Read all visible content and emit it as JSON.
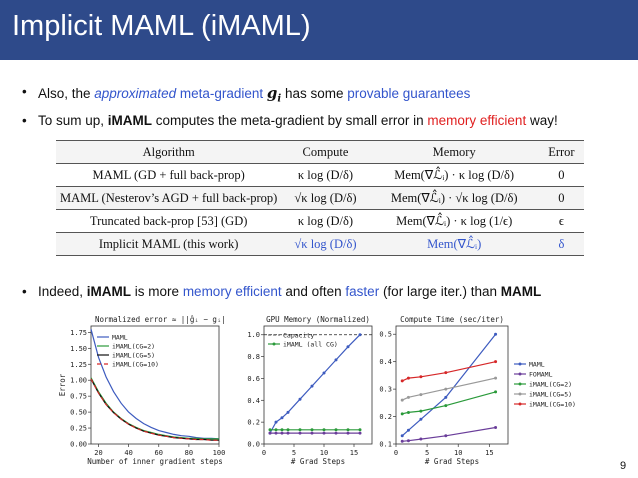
{
  "title": "Implicit MAML (iMAML)",
  "bullets": {
    "b1": {
      "dot": "•",
      "p1": "Also, the ",
      "p2": "approximated",
      "p3": " ",
      "p4": "meta-gradient",
      "p5": " ",
      "g": "g",
      "gsub": "i",
      "p6": " has some ",
      "p7": "provable guarantees"
    },
    "b2": {
      "dot": "•",
      "p1": "To sum up, ",
      "p2": "iMAML",
      "p3": " computes the meta-gradient by small error in ",
      "p4": "memory efficient",
      "p5": " way!"
    },
    "b3": {
      "dot": "•",
      "p1": "Indeed, ",
      "p2": "iMAML",
      "p3": " is more ",
      "p4": "memory efficient",
      "p5": " and often ",
      "p6": "faster",
      "p7": " (for large iter.) than ",
      "p8": "MAML"
    }
  },
  "table": {
    "headers": [
      "Algorithm",
      "Compute",
      "Memory",
      "Error"
    ],
    "rows": [
      {
        "algorithm": "MAML (GD + full back-prop)",
        "compute": "κ log (D/δ)",
        "memory": "Mem(∇ℒ̂ᵢ) · κ log (D/δ)",
        "error": "0"
      },
      {
        "algorithm": "MAML (Nesterov’s AGD + full back-prop)",
        "compute": "√κ log (D/δ)",
        "memory": "Mem(∇ℒ̂ᵢ) · √κ log (D/δ)",
        "error": "0"
      },
      {
        "algorithm": "Truncated back-prop [53] (GD)",
        "compute": "κ log (D/δ)",
        "memory": "Mem(∇ℒ̂ᵢ) · κ log (1/ϵ)",
        "error": "ϵ"
      },
      {
        "algorithm": "Implicit MAML (this work)",
        "compute": "√κ log (D/δ)",
        "memory": "Mem(∇ℒ̂ᵢ)",
        "error": "δ"
      }
    ]
  },
  "chart_data": [
    {
      "type": "line",
      "title": "Normalized error ≈ ||ĝᵢ − gᵢ|| / ||gᵢ||",
      "xlabel": "Number of inner gradient steps",
      "ylabel": "Error",
      "xlim": [
        15,
        100
      ],
      "ylim": [
        0,
        1.85
      ],
      "xticks": [
        20,
        40,
        60,
        80,
        100
      ],
      "yticks": [
        0.0,
        0.25,
        0.5,
        0.75,
        1.0,
        1.25,
        1.5,
        1.75
      ],
      "ytick_labels": [
        "0.00",
        "0.25",
        "0.50",
        "0.75",
        "1.00",
        "1.25",
        "1.50",
        "1.75"
      ],
      "legend_position": "upper-left",
      "x": [
        15,
        20,
        25,
        30,
        35,
        40,
        45,
        50,
        55,
        60,
        65,
        70,
        75,
        80,
        85,
        90,
        95,
        100
      ],
      "series": [
        {
          "name": "MAML",
          "color": "#3d5bbf",
          "dash": "",
          "values": [
            1.8,
            1.36,
            1.05,
            0.82,
            0.64,
            0.5,
            0.4,
            0.32,
            0.26,
            0.21,
            0.18,
            0.15,
            0.13,
            0.12,
            0.1,
            0.09,
            0.09,
            0.08
          ]
        },
        {
          "name": "iMAML(CG=2)",
          "color": "#2a9a3a",
          "dash": "",
          "values": [
            1.04,
            0.82,
            0.64,
            0.5,
            0.4,
            0.32,
            0.26,
            0.21,
            0.18,
            0.15,
            0.13,
            0.11,
            0.1,
            0.09,
            0.09,
            0.08,
            0.08,
            0.08
          ]
        },
        {
          "name": "iMAML(CG=5)",
          "color": "#111111",
          "dash": "",
          "values": [
            1.02,
            0.8,
            0.62,
            0.49,
            0.39,
            0.31,
            0.25,
            0.2,
            0.17,
            0.14,
            0.12,
            0.1,
            0.09,
            0.08,
            0.07,
            0.07,
            0.06,
            0.06
          ]
        },
        {
          "name": "iMAML(CG=10)",
          "color": "#d62728",
          "dash": "4 3",
          "values": [
            1.02,
            0.8,
            0.62,
            0.49,
            0.39,
            0.31,
            0.25,
            0.2,
            0.17,
            0.14,
            0.12,
            0.1,
            0.09,
            0.08,
            0.07,
            0.07,
            0.06,
            0.06
          ]
        }
      ]
    },
    {
      "type": "line",
      "title": "GPU Memory (Normalized)",
      "xlabel": "# Grad Steps",
      "ylabel": "",
      "xlim": [
        0,
        18
      ],
      "ylim": [
        0,
        1.08
      ],
      "xticks": [
        0,
        5,
        10,
        15
      ],
      "yticks": [
        0.0,
        0.2,
        0.4,
        0.6,
        0.8,
        1.0
      ],
      "ytick_labels": [
        "0.0",
        "0.2",
        "0.4",
        "0.6",
        "0.8",
        "1.0"
      ],
      "legend_position": "upper-left",
      "capacity": 1.0,
      "capacity_label": "Capacity",
      "x": [
        1,
        2,
        3,
        4,
        6,
        8,
        10,
        12,
        14,
        16
      ],
      "series": [
        {
          "name": "MAML",
          "color": "#3d5bbf",
          "marker": "circle",
          "values": [
            0.1,
            0.2,
            0.24,
            0.29,
            0.41,
            0.53,
            0.65,
            0.77,
            0.89,
            1.0
          ]
        },
        {
          "name": "iMAML (all CG)",
          "color": "#2a9a3a",
          "marker": "circle",
          "values": [
            0.13,
            0.13,
            0.13,
            0.13,
            0.13,
            0.13,
            0.13,
            0.13,
            0.13,
            0.13
          ]
        },
        {
          "name": "FOMAML",
          "color": "#6a3d9a",
          "marker": "circle",
          "values": [
            0.1,
            0.1,
            0.1,
            0.1,
            0.1,
            0.1,
            0.1,
            0.1,
            0.1,
            0.1
          ]
        }
      ]
    },
    {
      "type": "line",
      "title": "Compute Time (sec/iter)",
      "xlabel": "# Grad Steps",
      "ylabel": "",
      "xlim": [
        0,
        18
      ],
      "ylim": [
        0.1,
        0.53
      ],
      "xticks": [
        0,
        5,
        10,
        15
      ],
      "yticks": [
        0.1,
        0.2,
        0.3,
        0.4,
        0.5
      ],
      "ytick_labels": [
        "0.1",
        "0.2",
        "0.3",
        "0.4",
        "0.5"
      ],
      "legend_position": "center-right",
      "x": [
        1,
        2,
        4,
        8,
        16
      ],
      "series": [
        {
          "name": "MAML",
          "color": "#3d5bbf",
          "marker": "circle",
          "values": [
            0.13,
            0.15,
            0.19,
            0.27,
            0.5
          ]
        },
        {
          "name": "FOMAML",
          "color": "#6a3d9a",
          "marker": "circle",
          "values": [
            0.11,
            0.112,
            0.118,
            0.13,
            0.16
          ]
        },
        {
          "name": "iMAML(CG=2)",
          "color": "#2a9a3a",
          "marker": "circle",
          "values": [
            0.21,
            0.215,
            0.22,
            0.24,
            0.29
          ]
        },
        {
          "name": "iMAML(CG=5)",
          "color": "#999999",
          "marker": "circle",
          "values": [
            0.26,
            0.27,
            0.28,
            0.3,
            0.34
          ]
        },
        {
          "name": "iMAML(CG=10)",
          "color": "#d62728",
          "marker": "circle",
          "values": [
            0.33,
            0.34,
            0.345,
            0.36,
            0.4
          ]
        }
      ]
    }
  ],
  "page_number": "9",
  "colors": {
    "title_bar": "#2e4a8a",
    "accent_blue": "#3355cc",
    "accent_red": "#e02020"
  }
}
